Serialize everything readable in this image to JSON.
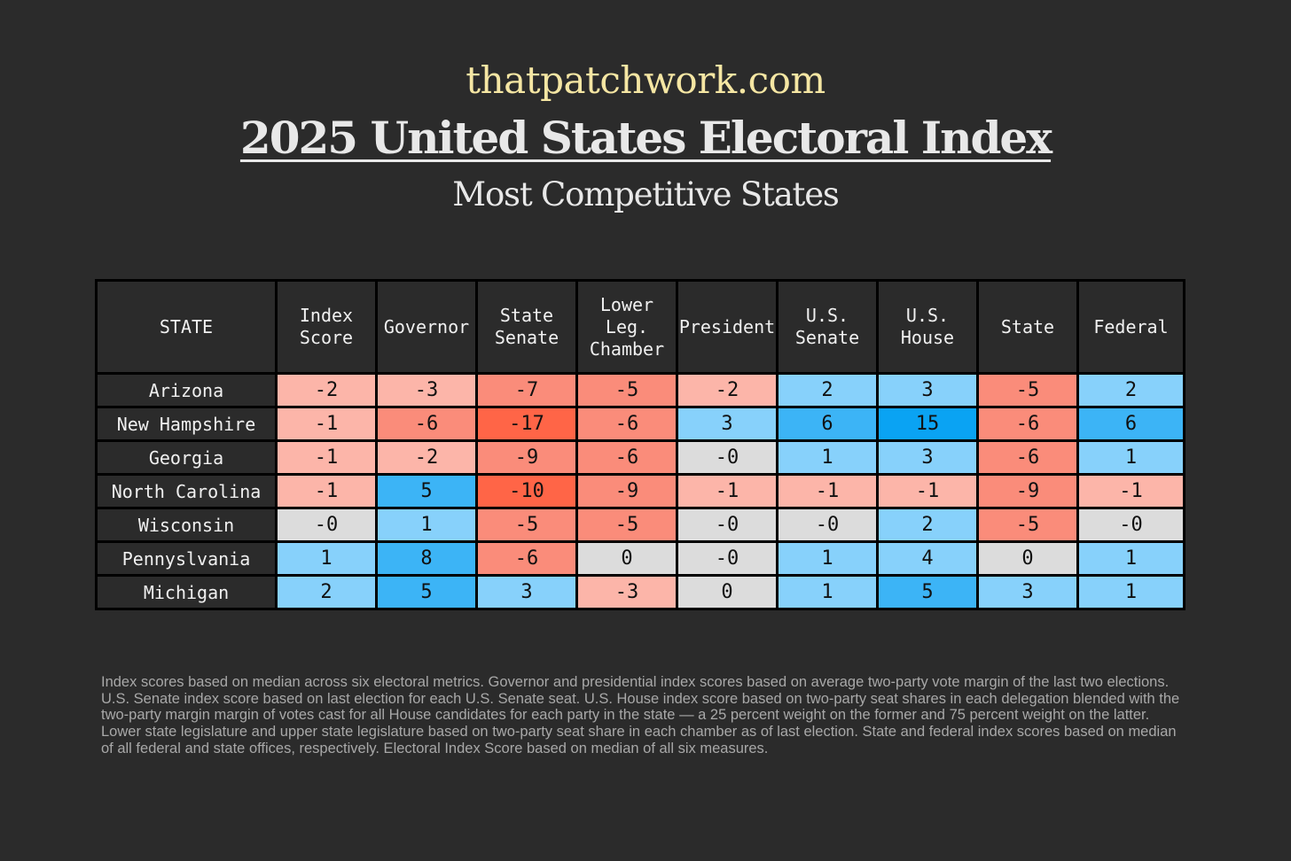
{
  "header": {
    "site": "thatpatchwork.com",
    "title": "2025 United States Electoral Index",
    "subtitle": "Most Competitive States"
  },
  "chart_data": {
    "type": "table",
    "columns": [
      "STATE",
      "Index\nScore",
      "Governor",
      "State\nSenate",
      "Lower\nLeg.\nChamber",
      "President",
      "U.S.\nSenate",
      "U.S.\nHouse",
      "State",
      "Federal"
    ],
    "rows": [
      {
        "state": "Arizona",
        "values": [
          "-2",
          "-3",
          "-7",
          "-5",
          "-2",
          "2",
          "3",
          "-5",
          "2"
        ]
      },
      {
        "state": "New Hampshire",
        "values": [
          "-1",
          "-6",
          "-17",
          "-6",
          "3",
          "6",
          "15",
          "-6",
          "6"
        ]
      },
      {
        "state": "Georgia",
        "values": [
          "-1",
          "-2",
          "-9",
          "-6",
          "-0",
          "1",
          "3",
          "-6",
          "1"
        ]
      },
      {
        "state": "North Carolina",
        "values": [
          "-1",
          "5",
          "-10",
          "-9",
          "-1",
          "-1",
          "-1",
          "-9",
          "-1"
        ]
      },
      {
        "state": "Wisconsin",
        "values": [
          "-0",
          "1",
          "-5",
          "-5",
          "-0",
          "-0",
          "2",
          "-5",
          "-0"
        ]
      },
      {
        "state": "Pennyslvania",
        "values": [
          "1",
          "8",
          "-6",
          "0",
          "-0",
          "1",
          "4",
          "0",
          "1"
        ]
      },
      {
        "state": "Michigan",
        "values": [
          "2",
          "5",
          "3",
          "-3",
          "0",
          "1",
          "5",
          "3",
          "1"
        ]
      }
    ],
    "colors": {
      "red_light": "#fcb5a9",
      "red_mid": "#fa8c7a",
      "red_strong": "#ff6547",
      "blue_light": "#87d1fb",
      "blue_mid": "#3cb4f6",
      "blue_strong": "#0aa3f3",
      "neutral": "#dcdcdc"
    }
  },
  "footnote": "Index scores based on median across six electoral metrics. Governor and presidential index scores based on average two-party vote margin of the last two elections. U.S. Senate index score based on last election for each U.S. Senate seat. U.S. House index score based on two-party seat shares in each delegation blended with the two-party margin margin of votes cast for all House candidates for each party in the state — a 25 percent weight on the former and 75 percent weight on the latter. Lower state legislature and upper state legislature based on two-party seat share in each chamber as of last election. State and federal index scores based on median of all federal and state offices, respectively. Electoral Index Score based on median of all six measures."
}
